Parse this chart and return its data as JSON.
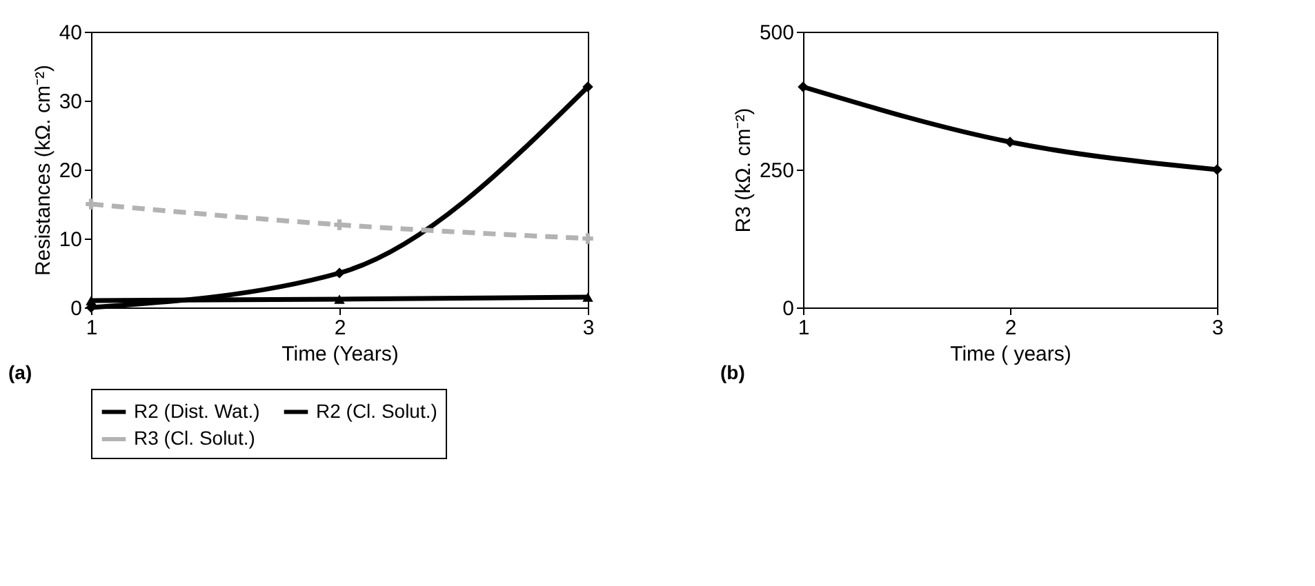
{
  "chart_data": [
    {
      "type": "line",
      "x": [
        1,
        2,
        3
      ],
      "xlim": [
        1,
        3
      ],
      "xticks": [
        1,
        2,
        3
      ],
      "ylim": [
        0,
        40
      ],
      "yticks": [
        0,
        10,
        20,
        30,
        40
      ],
      "xlabel": "Time (Years)",
      "ylabel": "Resistances (kΩ. cm⁻²)",
      "grid": false,
      "legend": "bottom",
      "annotations": [
        "(a)"
      ],
      "series": [
        {
          "name": "R2 (Dist. Wat.)",
          "color": "#000000",
          "marker": "diamond",
          "line_style": "solid",
          "values": [
            0,
            5,
            32
          ]
        },
        {
          "name": "R2 (Cl. Solut.)",
          "color": "#000000",
          "marker": "triangle",
          "line_style": "solid",
          "values": [
            1,
            1.2,
            1.5
          ]
        },
        {
          "name": "R3 (Cl. Solut.)",
          "color": "#b3b3b3",
          "marker": "cross",
          "line_style": "dashed",
          "values": [
            15,
            12,
            10
          ]
        }
      ]
    },
    {
      "type": "line",
      "x": [
        1,
        2,
        3
      ],
      "xlim": [
        1,
        3
      ],
      "xticks": [
        1,
        2,
        3
      ],
      "ylim": [
        0,
        500
      ],
      "yticks": [
        0,
        250,
        500
      ],
      "xlabel": "Time ( years)",
      "ylabel": "R3 (kΩ. cm⁻²)",
      "grid": false,
      "legend": false,
      "annotations": [
        "(b)"
      ],
      "series": [
        {
          "color": "#000000",
          "marker": "diamond",
          "line_style": "solid",
          "values": [
            400,
            300,
            250
          ]
        }
      ]
    }
  ]
}
